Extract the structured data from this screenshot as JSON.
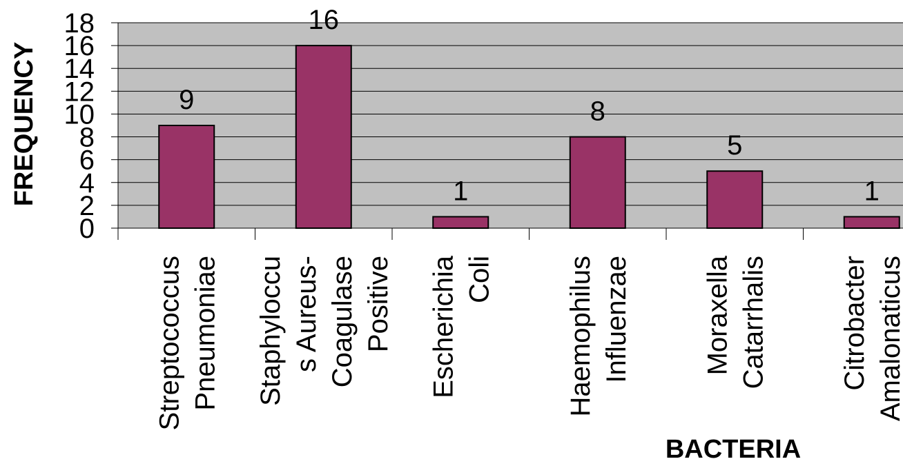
{
  "chart_data": {
    "type": "bar",
    "title": "",
    "xlabel": "BACTERIA",
    "ylabel": "FREQUENCY",
    "ylim": [
      0,
      18
    ],
    "yticks": [
      0,
      2,
      4,
      6,
      8,
      10,
      12,
      14,
      16,
      18
    ],
    "grid": true,
    "legend": "none",
    "categories": [
      [
        "Streptococcus",
        "Pneumoniae"
      ],
      [
        "Staphyloccu",
        "s Aureus-",
        "Coagulase",
        "Positive"
      ],
      [
        "Escherichia",
        "Coli"
      ],
      [
        "Haemophilus",
        "Influenzae"
      ],
      [
        "Moraxella",
        "Catarrhalis"
      ],
      [
        "Citrobacter",
        "Amalonaticus"
      ]
    ],
    "values": [
      9,
      16,
      1,
      8,
      5,
      1
    ],
    "colors": {
      "bar": "#993366",
      "plot_bg": "#c0c0c0",
      "gridline": "#000000"
    }
  }
}
